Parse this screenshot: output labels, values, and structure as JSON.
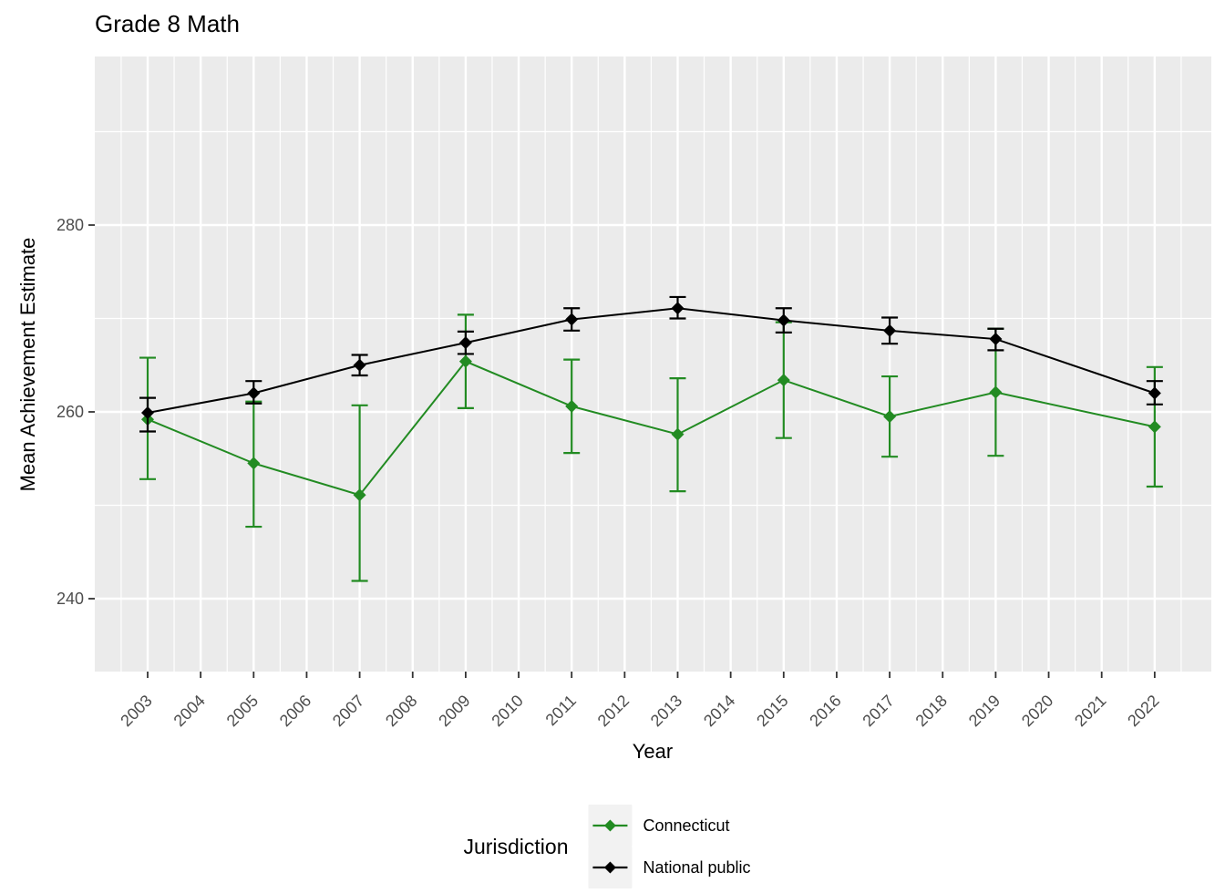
{
  "title": "Grade 8 Math",
  "axes": {
    "x_label": "Year",
    "y_label": "Mean Achievement Estimate",
    "x_ticks": [
      2003,
      2004,
      2005,
      2006,
      2007,
      2008,
      2009,
      2010,
      2011,
      2012,
      2013,
      2014,
      2015,
      2016,
      2017,
      2018,
      2019,
      2020,
      2021,
      2022
    ],
    "y_ticks": [
      240,
      260,
      280
    ],
    "y_minor": [
      250,
      270,
      290
    ]
  },
  "legend": {
    "title": "Jurisdiction",
    "items": [
      {
        "label": "Connecticut",
        "color": "#228B22"
      },
      {
        "label": "National public",
        "color": "#000000"
      }
    ]
  },
  "colors": {
    "panel_bg": "#EBEBEB",
    "grid": "#FFFFFF",
    "axis_text": "#4D4D4D",
    "tick_mark": "#333333",
    "legend_key_bg": "#F2F2F2"
  },
  "chart_data": {
    "type": "line",
    "title": "Grade 8 Math",
    "xlabel": "Year",
    "ylabel": "Mean Achievement Estimate",
    "x": [
      2003,
      2005,
      2007,
      2009,
      2011,
      2013,
      2015,
      2017,
      2019,
      2022
    ],
    "xlim": [
      2002,
      2023
    ],
    "ylim": [
      232,
      298
    ],
    "grid": true,
    "marker": "diamond",
    "error_bars": true,
    "legend_position": "bottom",
    "series": [
      {
        "name": "Connecticut",
        "color": "#228B22",
        "values": [
          259.2,
          254.5,
          251.1,
          265.4,
          260.6,
          257.6,
          263.4,
          259.5,
          262.1,
          258.4
        ],
        "ci_low": [
          252.8,
          247.7,
          241.9,
          260.4,
          255.6,
          251.5,
          257.2,
          255.2,
          255.3,
          252.0
        ],
        "ci_high": [
          265.8,
          261.1,
          260.7,
          270.4,
          265.6,
          263.6,
          269.6,
          263.8,
          268.9,
          264.8
        ]
      },
      {
        "name": "National public",
        "color": "#000000",
        "values": [
          259.9,
          262.0,
          265.0,
          267.4,
          269.9,
          271.1,
          269.8,
          268.7,
          267.8,
          262.0
        ],
        "ci_low": [
          257.9,
          260.9,
          263.9,
          266.2,
          268.7,
          270.0,
          268.5,
          267.3,
          266.6,
          260.8
        ],
        "ci_high": [
          261.5,
          263.3,
          266.1,
          268.6,
          271.1,
          272.3,
          271.1,
          270.1,
          268.9,
          263.3
        ]
      }
    ]
  }
}
